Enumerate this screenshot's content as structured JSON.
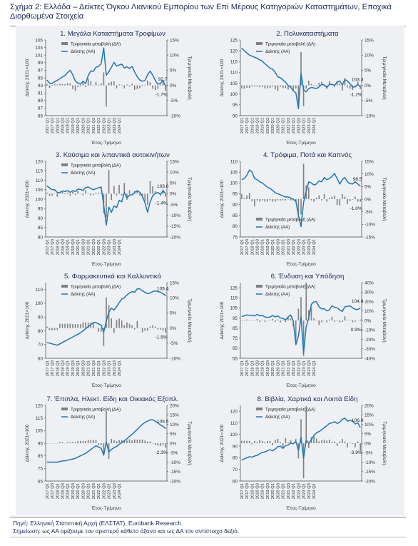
{
  "figure": {
    "title": "Σχήμα 2: Ελλάδα – Δείκτες Όγκου Λιανικού Εμπορίου των Επί Μέρους Κατηγοριών Καταστημάτων, Εποχικά Διορθωμένα Στοιχεία",
    "source": "Πηγή: Ελληνική Στατιστική Αρχή (ΕΛΣΤΑΤ), Eurobank Research.",
    "note": "Σημείωση: ως ΑΑ ορίζουμε τον αριστερό κάθετο άξονα και ως ΔΑ τον αντίστοιχο δεξιό."
  },
  "common": {
    "x_ticks": [
      "2017 Q1",
      "2017 Q3",
      "2018 Q1",
      "2018 Q3",
      "2019 Q1",
      "2019 Q3",
      "2020 Q1",
      "2020 Q3",
      "2021 Q1",
      "2021 Q3",
      "2022 Q1",
      "2022 Q3",
      "2023 Q1",
      "2023 Q3",
      "2024 Q1"
    ],
    "xlabel": "Έτος-Τρίμηνο",
    "ylabel_left": "Δείκτης 2021=100",
    "ylabel_right": "Τριμηνιαία Μεταβολή",
    "legend_bar": "Τριμηνιαία μεταβολή (ΔΑ)",
    "legend_line": "Δείκτης (ΑΑ)",
    "colors": {
      "bar": "#808080",
      "line": "#1f77b4",
      "axis": "#1a2a55",
      "panel": "#eef0f4"
    }
  },
  "chart_data": [
    {
      "type": "bar+line",
      "title": "1. Μεγάλα Καταστήματα Τροφίμων",
      "left_ticks": [
        85,
        87,
        89,
        91,
        93,
        95,
        97,
        99,
        101,
        103,
        105
      ],
      "right_ticks": [
        "-10%",
        "-5%",
        "0%",
        "5%",
        "10%",
        "15%"
      ],
      "ylim_left": [
        85,
        105
      ],
      "ylim_right": [
        -10,
        15
      ],
      "last_value_label": "92.7",
      "last_change_label": "-1.7%",
      "index": [
        94.4,
        93.6,
        93.5,
        94.0,
        94.3,
        94.8,
        95.2,
        95.6,
        96.4,
        97.0,
        95.8,
        94.1,
        93.6,
        93.3,
        94.1,
        93.5,
        95.6,
        96.8,
        96.7,
        97.8,
        98.0,
        98.7,
        102.9,
        95.7,
        96.6,
        97.8,
        99.1,
        98.1,
        98.4,
        98.6,
        97.6,
        97.9,
        97.5,
        98.0,
        96.5,
        95.3,
        94.4,
        94.1,
        94.3,
        95.8,
        96.8,
        95.7,
        94.3,
        93.3,
        93.5,
        94.3,
        92.7
      ],
      "change": [
        0.5,
        -0.8,
        -0.1,
        0.5,
        0.3,
        0.5,
        0.4,
        0.4,
        0.8,
        0.6,
        -1.2,
        -1.8,
        -0.5,
        -0.3,
        0.9,
        -0.6,
        2.2,
        1.3,
        -0.1,
        1.1,
        0.2,
        0.7,
        4.3,
        -7.0,
        0.9,
        1.2,
        1.3,
        -1.0,
        0.3,
        0.2,
        -1.0,
        0.3,
        -0.4,
        0.5,
        -1.5,
        -1.2,
        -0.9,
        -0.3,
        0.2,
        1.6,
        1.0,
        -1.1,
        -1.5,
        -1.1,
        0.2,
        0.9,
        -1.7
      ]
    },
    {
      "type": "bar+line",
      "title": "2. Πολυκαταστήματα",
      "left_ticks": [
        90,
        95,
        100,
        105,
        110,
        115,
        120,
        125
      ],
      "right_ticks": [
        "-10%",
        "-5%",
        "0%",
        "5%",
        "10%",
        "15%"
      ],
      "ylim_left": [
        90,
        125
      ],
      "ylim_right": [
        -10,
        15
      ],
      "last_value_label": "103.3",
      "last_change_label": "-1.2%",
      "index": [
        121.3,
        120.0,
        119.0,
        118.0,
        117.5,
        117.0,
        116.5,
        115.8,
        115.2,
        114.0,
        113.0,
        112.0,
        111.5,
        110.0,
        108.0,
        107.5,
        106.5,
        105.5,
        104.0,
        103.2,
        101.5,
        100.5,
        93.2,
        109.5,
        102.0,
        101.0,
        102.5,
        103.0,
        102.8,
        102.5,
        103.3,
        104.5,
        104.2,
        103.0,
        104.4,
        104.5,
        104.0,
        105.5,
        106.0,
        104.2,
        106.7,
        106.0,
        104.8,
        103.2,
        103.3,
        104.5,
        103.3
      ],
      "change": [
        -1.0,
        -1.1,
        -0.8,
        -0.8,
        -0.4,
        -0.4,
        -0.4,
        -0.6,
        -0.5,
        -1.0,
        -0.9,
        -0.9,
        -0.4,
        -1.3,
        -1.8,
        -0.5,
        -0.9,
        -0.9,
        -1.4,
        -0.8,
        -1.6,
        -1.0,
        -7.2,
        11.0,
        -6.8,
        -1.0,
        1.5,
        0.5,
        -0.2,
        -0.3,
        0.8,
        1.2,
        -0.3,
        -1.2,
        1.4,
        0.1,
        -0.5,
        1.4,
        0.5,
        -1.7,
        2.4,
        -0.7,
        -1.1,
        -1.5,
        0.1,
        1.2,
        -1.2
      ]
    },
    {
      "type": "bar+line",
      "title": "3. Καύσιμα και λιπαντικά αυτοκινήτων",
      "left_ticks": [
        80,
        85,
        90,
        95,
        100,
        105,
        110,
        115,
        120
      ],
      "right_ticks": [
        "-20%",
        "-15%",
        "-10%",
        "-5%",
        "0%",
        "5%",
        "10%",
        "15%"
      ],
      "ylim_left": [
        80,
        120
      ],
      "ylim_right": [
        -20,
        15
      ],
      "last_value_label": "103.0",
      "last_change_label": "-1.4%",
      "index": [
        107.0,
        106.0,
        105.0,
        105.0,
        103.5,
        103.5,
        104.3,
        104.0,
        104.5,
        103.6,
        104.5,
        104.0,
        105.3,
        105.2,
        104.5,
        106.2,
        106.4,
        105.5,
        105.0,
        105.5,
        106.0,
        106.4,
        96.8,
        86.3,
        95.8,
        93.0,
        96.4,
        95.5,
        99.4,
        98.6,
        103.5,
        100.6,
        102.2,
        102.3,
        103.5,
        104.5,
        103.6,
        101.5,
        98.0,
        93.0,
        98.5,
        101.8,
        103.0,
        103.5,
        102.5,
        104.4,
        103.0
      ],
      "change": [
        0.5,
        -0.9,
        -0.9,
        0.0,
        -1.4,
        0.0,
        0.8,
        -0.3,
        0.5,
        -0.9,
        0.9,
        -0.5,
        1.2,
        -0.1,
        -0.7,
        1.6,
        0.2,
        -0.8,
        -0.5,
        0.5,
        0.5,
        0.4,
        -9.0,
        -10.9,
        11.0,
        -2.9,
        3.6,
        -0.9,
        4.1,
        -0.8,
        5.0,
        -2.8,
        1.6,
        0.1,
        1.2,
        1.0,
        -0.9,
        -2.0,
        -3.4,
        -5.1,
        5.9,
        3.4,
        1.2,
        0.5,
        -1.0,
        1.9,
        -1.4
      ]
    },
    {
      "type": "bar+line",
      "title": "4. Τρόφιμα, Ποτά και Καπνός",
      "left_ticks": [
        75,
        80,
        85,
        90,
        95,
        100,
        105,
        110
      ],
      "right_ticks": [
        "-15%",
        "-10%",
        "-5%",
        "0%",
        "5%",
        "10%",
        "15%"
      ],
      "ylim_left": [
        75,
        110
      ],
      "ylim_right": [
        -15,
        15
      ],
      "last_value_label": "98.5",
      "last_change_label": "-1.0%",
      "index": [
        101.5,
        102.0,
        103.5,
        106.0,
        105.0,
        102.0,
        101.5,
        100.5,
        100.0,
        99.0,
        98.0,
        97.5,
        96.5,
        95.5,
        95.0,
        94.5,
        94.0,
        93.5,
        93.5,
        93.0,
        92.5,
        91.5,
        85.0,
        79.8,
        91.0,
        96.0,
        100.5,
        100.0,
        99.0,
        99.5,
        101.0,
        100.5,
        102.5,
        101.5,
        102.0,
        103.0,
        104.4,
        102.0,
        99.5,
        101.5,
        102.5,
        100.5,
        99.7,
        99.5,
        100.5,
        99.5,
        98.5
      ],
      "change": [
        2.0,
        0.5,
        1.5,
        2.4,
        -0.9,
        -2.9,
        -0.5,
        -1.0,
        -0.5,
        -1.0,
        -1.0,
        -0.5,
        -1.0,
        -1.0,
        -0.5,
        -0.5,
        -0.5,
        -0.5,
        0.0,
        -0.5,
        -0.5,
        -1.1,
        -7.1,
        -6.1,
        14.0,
        5.5,
        4.7,
        -0.5,
        -1.0,
        0.5,
        1.5,
        -0.5,
        2.0,
        -1.0,
        0.5,
        1.0,
        1.4,
        -2.3,
        -2.5,
        2.0,
        1.0,
        -2.0,
        -0.8,
        -0.2,
        1.0,
        -1.0,
        -1.0
      ]
    },
    {
      "type": "bar+line",
      "title": "5. Φαρμακευτικά και Καλλυντικά",
      "left_ticks": [
        60,
        70,
        80,
        90,
        100,
        110
      ],
      "right_ticks": [
        "-10%",
        "-5%",
        "0%",
        "5%",
        "10%",
        "15%"
      ],
      "ylim_left": [
        60,
        115
      ],
      "ylim_right": [
        -10,
        15
      ],
      "last_value_label": "105.4",
      "last_change_label": "-1.5%",
      "index": [
        71.5,
        71.0,
        70.5,
        70.0,
        69.5,
        70.5,
        71.5,
        72.5,
        73.5,
        74.5,
        75.5,
        76.5,
        77.5,
        78.5,
        80.0,
        81.5,
        83.0,
        84.5,
        86.0,
        86.0,
        85.0,
        84.0,
        79.0,
        87.0,
        93.5,
        96.5,
        95.0,
        97.5,
        100.5,
        103.0,
        104.0,
        106.0,
        107.5,
        108.5,
        108.0,
        110.5,
        110.5,
        109.0,
        108.0,
        107.0,
        107.5,
        108.5,
        109.0,
        108.5,
        108.0,
        107.0,
        105.4
      ],
      "change": [
        0.5,
        -0.7,
        -0.7,
        -0.7,
        -0.7,
        1.4,
        1.4,
        1.4,
        1.4,
        1.4,
        1.3,
        1.3,
        1.3,
        1.3,
        1.9,
        1.9,
        1.8,
        1.8,
        1.8,
        0.0,
        -1.2,
        -1.2,
        -6.0,
        10.1,
        7.5,
        3.2,
        -1.6,
        2.6,
        3.1,
        2.5,
        1.0,
        1.9,
        1.4,
        0.9,
        -0.5,
        2.3,
        0.0,
        -1.4,
        -0.9,
        -0.9,
        0.5,
        0.9,
        0.5,
        -0.5,
        -0.5,
        -0.9,
        -1.5
      ]
    },
    {
      "type": "bar+line",
      "title": "6. Ένδυση και Υπόδηση",
      "left_ticks": [
        55,
        65,
        75,
        85,
        95,
        105,
        115,
        125
      ],
      "right_ticks": [
        "-40%",
        "-30%",
        "-20%",
        "-10%",
        "0%",
        "10%",
        "20%",
        "30%",
        "40%"
      ],
      "ylim_left": [
        55,
        130
      ],
      "ylim_right": [
        -40,
        40
      ],
      "last_value_label": "104.6",
      "last_change_label": "0.9%",
      "index": [
        96.5,
        97.0,
        98.0,
        97.5,
        97.5,
        97.0,
        98.5,
        97.0,
        97.5,
        96.0,
        95.5,
        96.0,
        97.5,
        96.0,
        97.0,
        95.0,
        94.5,
        93.0,
        96.0,
        98.0,
        92.0,
        68.5,
        77.0,
        96.0,
        60.0,
        86.0,
        95.5,
        108.5,
        111.0,
        111.0,
        106.0,
        104.0,
        104.0,
        102.0,
        103.0,
        107.0,
        105.5,
        105.0,
        103.0,
        101.5,
        106.0,
        106.5,
        107.0,
        105.0,
        103.5,
        103.5,
        104.6
      ],
      "change": [
        0.5,
        0.5,
        1.0,
        -0.5,
        0.0,
        -0.5,
        1.5,
        -1.5,
        0.5,
        -1.5,
        -0.5,
        0.5,
        1.6,
        -1.5,
        1.0,
        -2.1,
        -0.5,
        -1.6,
        3.2,
        2.1,
        -6.1,
        -25.5,
        12.4,
        24.7,
        -37.5,
        43.3,
        11.0,
        13.6,
        2.3,
        0.0,
        -4.5,
        -1.9,
        0.0,
        -1.9,
        1.0,
        3.9,
        -1.4,
        -0.5,
        -1.9,
        -1.5,
        4.4,
        0.5,
        0.5,
        -1.9,
        -1.4,
        0.0,
        0.9
      ]
    },
    {
      "type": "bar+line",
      "title": "7. Έπιπλα, Ηλεκτ. Είδη και Οικιακός Εξοπλ.",
      "left_ticks": [
        65,
        75,
        85,
        95,
        105,
        115,
        125
      ],
      "right_ticks": [
        "-20%",
        "-15%",
        "-10%",
        "-5%",
        "0%",
        "5%",
        "10%",
        "15%",
        "20%"
      ],
      "ylim_left": [
        65,
        125
      ],
      "ylim_right": [
        -20,
        20
      ],
      "last_value_label": "106.5",
      "last_change_label": "-2.3%",
      "index": [
        80.0,
        80.0,
        80.0,
        80.0,
        80.0,
        80.5,
        81.0,
        81.0,
        81.5,
        82.0,
        82.5,
        83.0,
        84.0,
        85.0,
        86.0,
        87.0,
        88.5,
        90.0,
        91.5,
        93.0,
        92.0,
        91.0,
        85.5,
        96.0,
        88.0,
        90.0,
        91.5,
        92.5,
        94.0,
        95.5,
        97.0,
        98.5,
        100.5,
        102.0,
        104.0,
        106.0,
        108.0,
        110.0,
        111.5,
        112.5,
        113.5,
        113.5,
        112.5,
        111.0,
        109.5,
        108.5,
        106.5
      ],
      "change": [
        0.0,
        0.0,
        0.0,
        0.0,
        0.0,
        0.6,
        0.6,
        0.0,
        0.6,
        0.6,
        0.6,
        0.6,
        1.2,
        1.2,
        1.2,
        1.2,
        1.7,
        1.7,
        1.7,
        1.6,
        -1.1,
        -1.1,
        -6.0,
        17.0,
        -8.3,
        2.3,
        1.7,
        1.1,
        1.6,
        1.6,
        1.6,
        1.5,
        2.0,
        1.5,
        2.0,
        1.9,
        1.9,
        1.9,
        1.4,
        0.9,
        0.9,
        0.0,
        -0.9,
        -1.3,
        -1.4,
        -0.9,
        -2.3
      ]
    },
    {
      "type": "bar+line",
      "title": "8. Βιβλία, Χαρτικά και Λοιπά Είδη",
      "left_ticks": [
        60,
        70,
        80,
        90,
        100,
        110,
        120
      ],
      "right_ticks": [
        "-20%",
        "-15%",
        "-10%",
        "-5%",
        "0%",
        "5%",
        "10%",
        "15%",
        "20%"
      ],
      "ylim_left": [
        60,
        125
      ],
      "ylim_right": [
        -20,
        20
      ],
      "last_value_label": "106.0",
      "last_change_label": "-3.9%",
      "index": [
        78.0,
        79.0,
        80.0,
        81.0,
        80.5,
        81.5,
        82.0,
        83.5,
        84.5,
        85.0,
        86.0,
        87.0,
        86.0,
        87.5,
        89.5,
        90.0,
        88.0,
        90.5,
        91.0,
        92.5,
        92.0,
        94.0,
        86.5,
        97.5,
        79.5,
        95.0,
        92.5,
        95.5,
        99.0,
        101.5,
        102.5,
        104.0,
        106.0,
        107.5,
        109.5,
        110.0,
        111.0,
        109.5,
        110.5,
        113.0,
        114.0,
        111.5,
        112.0,
        111.5,
        109.0,
        110.0,
        106.0
      ],
      "change": [
        1.3,
        1.3,
        1.3,
        1.2,
        -0.6,
        1.2,
        0.6,
        1.8,
        1.2,
        0.6,
        1.2,
        1.2,
        -1.1,
        1.7,
        2.3,
        0.6,
        -2.2,
        2.8,
        0.6,
        1.6,
        -0.5,
        2.2,
        -8.0,
        12.7,
        -18.5,
        19.5,
        -2.6,
        3.2,
        3.7,
        2.5,
        1.0,
        1.5,
        1.9,
        1.4,
        1.9,
        0.5,
        0.9,
        -1.4,
        0.9,
        2.3,
        0.9,
        -2.2,
        0.4,
        -0.4,
        -2.2,
        0.9,
        -3.9
      ]
    }
  ]
}
